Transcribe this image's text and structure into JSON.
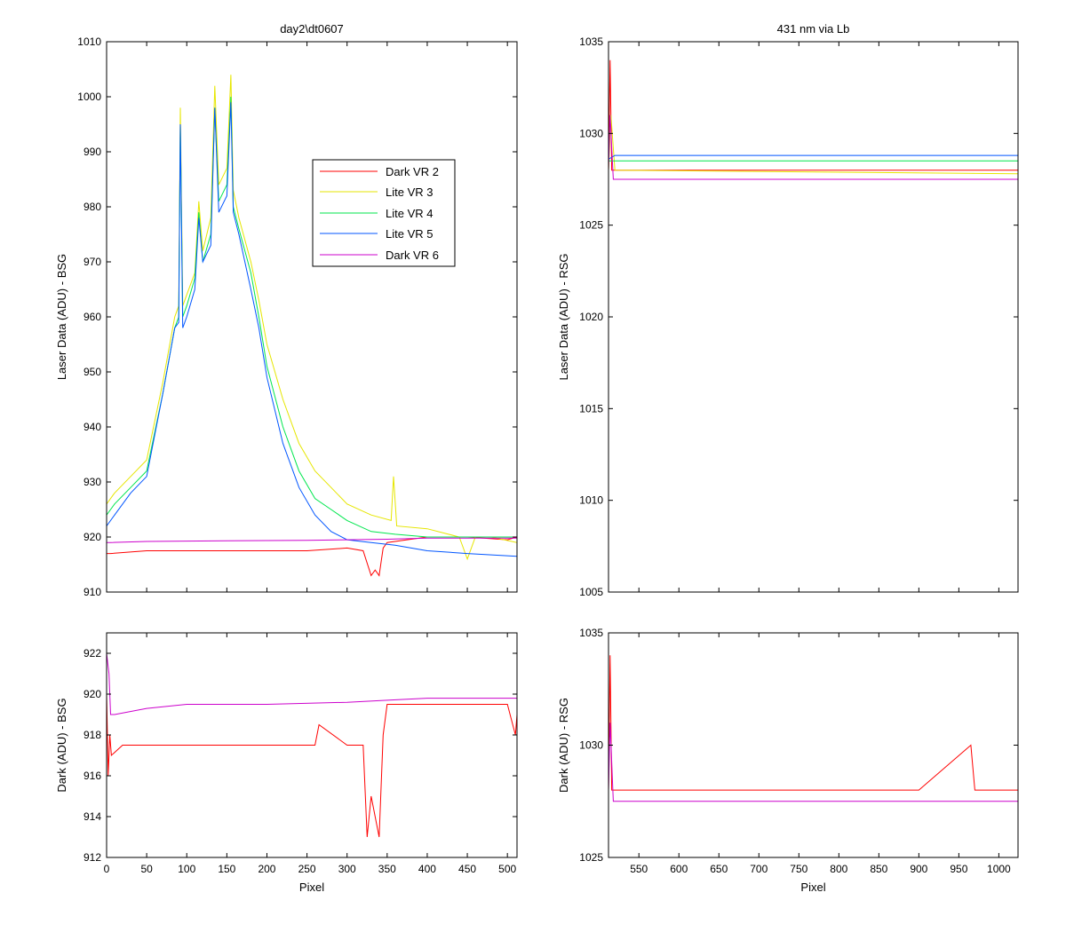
{
  "chart_data": [
    {
      "type": "line",
      "title": "day2\\dt0607",
      "xlabel": "",
      "ylabel": "Laser Data (ADU) - BSG",
      "xlim": [
        0,
        512
      ],
      "ylim": [
        910,
        1010
      ],
      "xticks": [
        0,
        50,
        100,
        150,
        200,
        250,
        300,
        350,
        400,
        450,
        500
      ],
      "yticks": [
        910,
        920,
        930,
        940,
        950,
        960,
        970,
        980,
        990,
        1000,
        1010
      ],
      "show_xtick_labels": false,
      "legend": {
        "position": "upper-right",
        "entries": [
          "Dark VR 2",
          "Lite VR 3",
          "Lite VR 4",
          "Lite VR 5",
          "Dark VR 6"
        ]
      },
      "series": [
        {
          "name": "Dark VR 2",
          "color": "#ff0000",
          "x": [
            0,
            5,
            50,
            150,
            250,
            300,
            320,
            330,
            335,
            340,
            345,
            350,
            400,
            450,
            500,
            512
          ],
          "y": [
            917,
            917,
            917.5,
            917.5,
            917.5,
            918,
            917.5,
            913,
            914,
            913,
            918,
            919,
            920,
            920,
            919.5,
            920
          ]
        },
        {
          "name": "Lite VR 3",
          "color": "#e6e600",
          "x": [
            0,
            10,
            30,
            50,
            70,
            85,
            90,
            92,
            95,
            100,
            110,
            115,
            120,
            130,
            135,
            140,
            150,
            155,
            158,
            165,
            180,
            190,
            200,
            220,
            240,
            260,
            280,
            300,
            330,
            355,
            358,
            362,
            400,
            440,
            450,
            460,
            480,
            512
          ],
          "y": [
            926,
            928,
            931,
            934,
            948,
            960,
            962,
            998,
            962,
            964,
            968,
            981,
            972,
            978,
            1002,
            984,
            987,
            1004,
            983,
            978,
            970,
            963,
            955,
            945,
            937,
            932,
            929,
            926,
            924,
            923,
            931,
            922,
            921.5,
            920,
            916,
            920,
            920,
            919
          ]
        },
        {
          "name": "Lite VR 4",
          "color": "#00e64d",
          "x": [
            0,
            10,
            30,
            50,
            70,
            85,
            90,
            92,
            95,
            100,
            110,
            115,
            120,
            130,
            135,
            140,
            150,
            155,
            158,
            165,
            180,
            190,
            200,
            220,
            240,
            260,
            280,
            300,
            330,
            360,
            400,
            450,
            512
          ],
          "y": [
            924,
            926,
            929,
            932,
            946,
            958,
            960,
            995,
            960,
            962,
            967,
            979,
            970,
            975,
            998,
            981,
            984,
            1000,
            980,
            976,
            968,
            960,
            951,
            940,
            932,
            927,
            925,
            923,
            921,
            920.5,
            920,
            920,
            920
          ]
        },
        {
          "name": "Lite VR 5",
          "color": "#0055ff",
          "x": [
            0,
            10,
            30,
            50,
            70,
            85,
            90,
            92,
            95,
            100,
            110,
            115,
            120,
            130,
            135,
            140,
            150,
            155,
            158,
            165,
            180,
            190,
            200,
            220,
            240,
            260,
            280,
            300,
            330,
            360,
            400,
            450,
            512
          ],
          "y": [
            922,
            924,
            928,
            931,
            946,
            958,
            959,
            995,
            958,
            960,
            965,
            978,
            970,
            973,
            998,
            979,
            982,
            999,
            979,
            975,
            965,
            958,
            949,
            937,
            929,
            924,
            921,
            919.5,
            919,
            918.5,
            917.5,
            917,
            916.5
          ]
        },
        {
          "name": "Dark VR 6",
          "color": "#cc00cc",
          "x": [
            0,
            5,
            50,
            150,
            250,
            300,
            350,
            400,
            450,
            512
          ],
          "y": [
            919,
            919,
            919.2,
            919.3,
            919.4,
            919.5,
            919.6,
            919.8,
            919.8,
            919.8
          ]
        }
      ]
    },
    {
      "type": "line",
      "title": "431 nm via Lb",
      "xlabel": "",
      "ylabel": "Laser Data (ADU) - RSG",
      "xlim": [
        512,
        1024
      ],
      "ylim": [
        1005,
        1035
      ],
      "xticks": [
        550,
        600,
        650,
        700,
        750,
        800,
        850,
        900,
        950,
        1000
      ],
      "yticks": [
        1005,
        1010,
        1015,
        1020,
        1025,
        1030,
        1035
      ],
      "show_xtick_labels": false,
      "series": [
        {
          "name": "Dark VR 2",
          "color": "#ff0000",
          "x": [
            512,
            514,
            516,
            520,
            1024
          ],
          "y": [
            1028,
            1034,
            1028,
            1028,
            1028
          ]
        },
        {
          "name": "Lite VR 3",
          "color": "#e6e600",
          "x": [
            512,
            515,
            520,
            1024
          ],
          "y": [
            1028,
            1031,
            1028,
            1027.8
          ]
        },
        {
          "name": "Lite VR 4",
          "color": "#00e64d",
          "x": [
            512,
            520,
            1024
          ],
          "y": [
            1028.5,
            1028.5,
            1028.5
          ]
        },
        {
          "name": "Lite VR 5",
          "color": "#0055ff",
          "x": [
            512,
            520,
            1024
          ],
          "y": [
            1028.6,
            1028.8,
            1028.8
          ]
        },
        {
          "name": "Dark VR 6",
          "color": "#cc00cc",
          "x": [
            512,
            514,
            518,
            1024
          ],
          "y": [
            1028,
            1031,
            1027.5,
            1027.5
          ]
        }
      ]
    },
    {
      "type": "line",
      "title": "",
      "xlabel": "Pixel",
      "ylabel": "Dark (ADU) - BSG",
      "xlim": [
        0,
        512
      ],
      "ylim": [
        912,
        923
      ],
      "xticks": [
        0,
        50,
        100,
        150,
        200,
        250,
        300,
        350,
        400,
        450,
        500
      ],
      "yticks": [
        912,
        914,
        916,
        918,
        920,
        922
      ],
      "show_xtick_labels": true,
      "series": [
        {
          "name": "Dark VR 2",
          "color": "#ff0000",
          "x": [
            0,
            2,
            4,
            6,
            20,
            100,
            200,
            260,
            265,
            300,
            320,
            325,
            330,
            335,
            340,
            345,
            350,
            380,
            400,
            450,
            500,
            510,
            512
          ],
          "y": [
            920,
            916,
            918,
            917,
            917.5,
            917.5,
            917.5,
            917.5,
            918.5,
            917.5,
            917.5,
            913,
            915,
            914,
            913,
            918,
            919.5,
            919.5,
            919.5,
            919.5,
            919.5,
            918,
            919
          ]
        },
        {
          "name": "Dark VR 6",
          "color": "#cc00cc",
          "x": [
            0,
            3,
            5,
            10,
            50,
            100,
            200,
            300,
            350,
            400,
            450,
            512
          ],
          "y": [
            922,
            921,
            919,
            919,
            919.3,
            919.5,
            919.5,
            919.6,
            919.7,
            919.8,
            919.8,
            919.8
          ]
        }
      ]
    },
    {
      "type": "line",
      "title": "",
      "xlabel": "Pixel",
      "ylabel": "Dark (ADU) - RSG",
      "xlim": [
        512,
        1024
      ],
      "ylim": [
        1025,
        1035
      ],
      "xticks": [
        550,
        600,
        650,
        700,
        750,
        800,
        850,
        900,
        950,
        1000
      ],
      "yticks": [
        1025,
        1030,
        1035
      ],
      "show_xtick_labels": true,
      "series": [
        {
          "name": "Dark VR 2",
          "color": "#ff0000",
          "x": [
            512,
            514,
            516,
            520,
            600,
            700,
            800,
            900,
            965,
            970,
            1024
          ],
          "y": [
            1028,
            1034,
            1028,
            1028,
            1028,
            1028,
            1028,
            1028,
            1030,
            1028,
            1028
          ]
        },
        {
          "name": "Dark VR 6",
          "color": "#cc00cc",
          "x": [
            512,
            514,
            518,
            600,
            700,
            800,
            900,
            1000,
            1024
          ],
          "y": [
            1028,
            1031,
            1027.5,
            1027.5,
            1027.5,
            1027.5,
            1027.5,
            1027.5,
            1027.5
          ]
        }
      ]
    }
  ]
}
